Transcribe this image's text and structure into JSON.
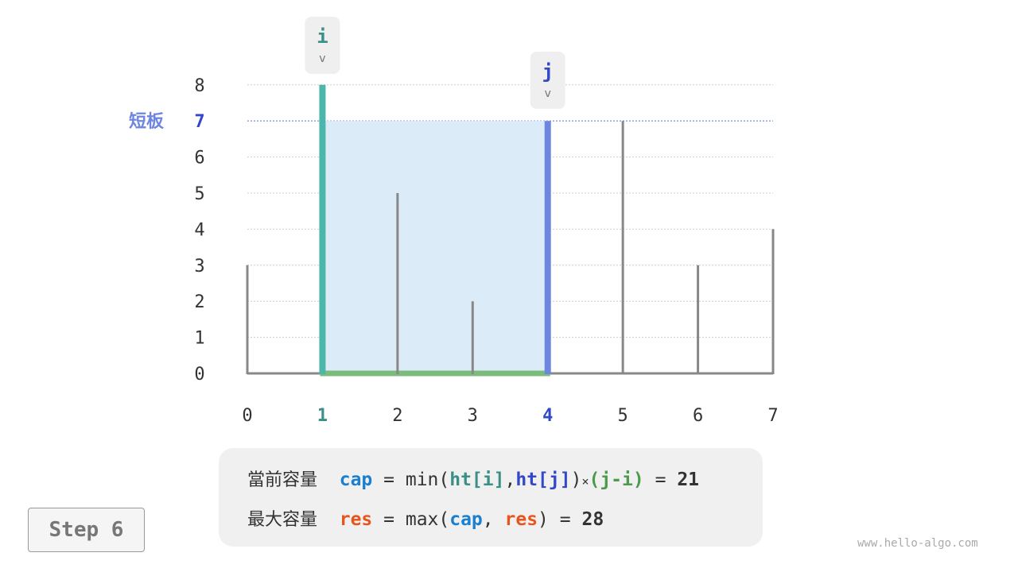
{
  "heights": [
    3,
    8,
    5,
    2,
    7,
    7,
    3,
    4
  ],
  "x_labels": [
    "0",
    "1",
    "2",
    "3",
    "4",
    "5",
    "6",
    "7"
  ],
  "y_labels": [
    "0",
    "1",
    "2",
    "3",
    "4",
    "5",
    "6",
    "7",
    "8"
  ],
  "pointer_i": {
    "label": "i",
    "index": 1,
    "color": "#4db6ac"
  },
  "pointer_j": {
    "label": "j",
    "index": 4,
    "color": "#6f86e0"
  },
  "short_board": {
    "label": "短板",
    "value": 7
  },
  "colors": {
    "water": "#dbecf8",
    "base": "#7dbb7d",
    "bar": "#888888",
    "i_text": "#3a8f86",
    "j_text": "#3347c9",
    "cap": "#1a7fcf",
    "res": "#e8541c",
    "diff": "#4c9a4c"
  },
  "formula": {
    "line1": {
      "label": "當前容量",
      "cap": "cap",
      "eq": "=",
      "fn": "min(",
      "hti": "ht[i]",
      "comma": ",",
      "htj": "ht[j]",
      "close": ")",
      "times": "×",
      "diff": "(j-i)",
      "eq2": "=",
      "result": "21"
    },
    "line2": {
      "label": "最大容量",
      "res": "res",
      "eq": "=",
      "fn": "max(",
      "cap": "cap",
      "comma": ",",
      "res2": "res",
      "close": ")",
      "eq2": "=",
      "result": "28"
    }
  },
  "step": "Step 6",
  "watermark": "www.hello-algo.com"
}
